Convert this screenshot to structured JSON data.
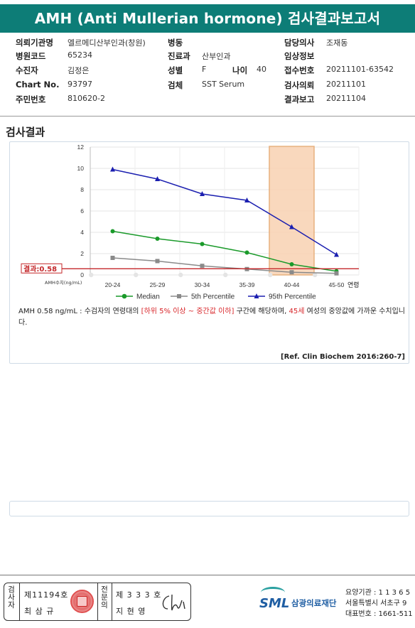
{
  "report": {
    "title": "AMH (Anti Mullerian hormone) 검사결과보고서"
  },
  "info": {
    "requesting_org_label": "의뢰기관명",
    "requesting_org": "엘르메디산부인과(창원)",
    "ward_label": "병동",
    "ward": "",
    "doctor_label": "담당의사",
    "doctor": "조재동",
    "hospital_code_label": "병원코드",
    "hospital_code": "65234",
    "dept_label": "진료과",
    "dept": "산부인과",
    "clinical_label": "임상정보",
    "clinical": "",
    "patient_label": "수진자",
    "patient": "김정은",
    "sex_label": "성별",
    "sex": "F",
    "age_label": "나이",
    "age": "40",
    "receipt_no_label": "접수번호",
    "receipt_no": "20211101-63542",
    "chart_no_label": "Chart No.",
    "chart_no": "93797",
    "specimen_label": "검체",
    "specimen": "SST Serum",
    "test_request_label": "검사의뢰",
    "test_request": "20211101",
    "resident_no_label": "주민번호",
    "resident_no": "810620-2",
    "result_report_label": "결과보고",
    "result_report": "20211104"
  },
  "section": {
    "title": "검사결과"
  },
  "chart_data": {
    "type": "line",
    "categories": [
      "20-24",
      "25-29",
      "30-34",
      "35-39",
      "40-44",
      "45-50"
    ],
    "x_suffix_label": "연령",
    "y_unit_label": "AMH수치(ng/mL)",
    "ylim": [
      0,
      12
    ],
    "yticks": [
      0,
      2,
      4,
      6,
      8,
      10,
      12
    ],
    "series": [
      {
        "name": "Median",
        "color": "#1a9a2a",
        "marker": "circle",
        "values": [
          4.1,
          3.4,
          2.9,
          2.1,
          1.0,
          0.35
        ]
      },
      {
        "name": "5th Percentile",
        "color": "#8a8a8a",
        "marker": "square",
        "values": [
          1.6,
          1.3,
          0.85,
          0.55,
          0.25,
          0.15
        ]
      },
      {
        "name": "95th Percentile",
        "color": "#1b1fb0",
        "marker": "triangle",
        "values": [
          9.9,
          9.0,
          7.6,
          7.0,
          4.5,
          1.9
        ]
      }
    ],
    "highlight_category": "40-44",
    "highlight_color": "#f9d2b2",
    "result_line": {
      "label": "결과:0.58",
      "value": 0.58,
      "color": "#c4282b"
    },
    "grid": true,
    "legend": "bottom"
  },
  "description": {
    "prefix": "AMH  0.58 ng/mL : 수검자의 연령대의 ",
    "range_red": "[하위 5% 이상 ~ 중간값 이하]",
    "middle": " 구간에 해당하며, ",
    "age_red": "45세",
    "suffix": " 여성의 중앙값에 가까운 수치입니다."
  },
  "reference": "[Ref. Clin Biochem 2016:260-7]",
  "footer": {
    "examiner_vertical": [
      "검",
      "사",
      "자"
    ],
    "examiner_no": "제11194호",
    "examiner_name": "최 삼 규",
    "specialist_vertical": [
      "전",
      "문",
      "의"
    ],
    "specialist_no": "제 3 3 3 호",
    "specialist_name": "지 현 영",
    "signature": "Chi",
    "logo_text": "SML",
    "logo_name": "삼광의료재단",
    "contact_line1": "요양기관 : 1 1 3 6 5",
    "contact_line2": "서울특별시 서초구 9",
    "contact_line3": "대표번호 : 1661-511"
  }
}
